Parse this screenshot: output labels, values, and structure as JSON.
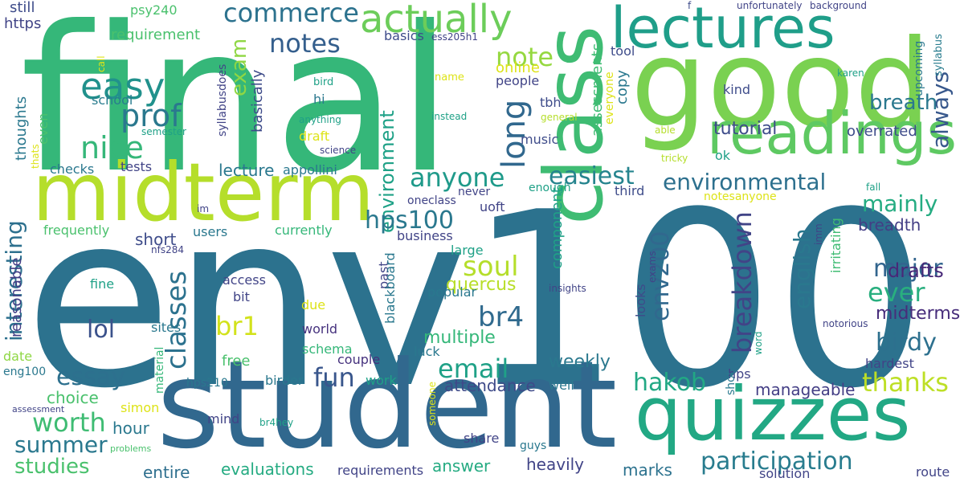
{
  "palette": {
    "dark_purple": "#46327e",
    "blue": "#365c8d",
    "steel": "#277f8e",
    "teal": "#1fa187",
    "green": "#4ac16d",
    "lime": "#a0da39",
    "yellow": "#e6e419"
  },
  "words": [
    {
      "text": "env100",
      "color": "#2c728e",
      "weight": 1.0
    },
    {
      "text": "final",
      "color": "#35b779",
      "weight": 0.84
    },
    {
      "text": "student",
      "color": "#31688e",
      "weight": 0.6
    },
    {
      "text": "good",
      "color": "#7ad151",
      "weight": 0.58
    },
    {
      "text": "midterm",
      "color": "#b5de2b",
      "weight": 0.38
    },
    {
      "text": "class",
      "color": "#3fbc73",
      "weight": 0.4
    },
    {
      "text": "quizzes",
      "color": "#22a884",
      "weight": 0.4
    },
    {
      "text": "lectures",
      "color": "#1f9e89",
      "weight": 0.3
    },
    {
      "text": "readings",
      "color": "#5ec962",
      "weight": 0.3
    },
    {
      "text": "actually",
      "color": "#6ccd5a",
      "weight": 0.2
    },
    {
      "text": "easy",
      "color": "#21918c",
      "weight": 0.18
    },
    {
      "text": "nice",
      "color": "#35b779",
      "weight": 0.16
    },
    {
      "text": "prof",
      "color": "#2a788e",
      "weight": 0.16
    },
    {
      "text": "commerce",
      "color": "#2c728e",
      "weight": 0.12
    },
    {
      "text": "notes",
      "color": "#355f8d",
      "weight": 0.12
    },
    {
      "text": "exam",
      "color": "#8fd744",
      "weight": 0.12
    },
    {
      "text": "note",
      "color": "#95d840",
      "weight": 0.12
    },
    {
      "text": "breath",
      "color": "#2a788e",
      "weight": 0.1
    },
    {
      "text": "always",
      "color": "#38588c",
      "weight": 0.1
    },
    {
      "text": "long",
      "color": "#31688e",
      "weight": 0.12
    },
    {
      "text": "anyone",
      "color": "#1f9a8a",
      "weight": 0.14
    },
    {
      "text": "easiest",
      "color": "#25848e",
      "weight": 0.14
    },
    {
      "text": "environment",
      "color": "#1fa187",
      "weight": 0.12
    },
    {
      "text": "environmental",
      "color": "#2d708e",
      "weight": 0.12
    },
    {
      "text": "hps100",
      "color": "#2a788e",
      "weight": 0.12
    },
    {
      "text": "mainly",
      "color": "#25ac82",
      "weight": 0.12
    },
    {
      "text": "major",
      "color": "#32658e",
      "weight": 0.12
    },
    {
      "text": "interesting",
      "color": "#2d708e",
      "weight": 0.12
    },
    {
      "text": "soul",
      "color": "#b5de2b",
      "weight": 0.14
    },
    {
      "text": "br4",
      "color": "#306a8e",
      "weight": 0.14
    },
    {
      "text": "br1",
      "color": "#d2e21b",
      "weight": 0.14
    },
    {
      "text": "classes",
      "color": "#2c728e",
      "weight": 0.16
    },
    {
      "text": "lol",
      "color": "#3b528b",
      "weight": 0.14
    },
    {
      "text": "email",
      "color": "#1fa187",
      "weight": 0.14
    },
    {
      "text": "essay",
      "color": "#2d708e",
      "weight": 0.14
    },
    {
      "text": "fun",
      "color": "#39568c",
      "weight": 0.14
    },
    {
      "text": "breakdown",
      "color": "#414487",
      "weight": 0.14
    },
    {
      "text": "env200",
      "color": "#31688e",
      "weight": 0.12
    },
    {
      "text": "english",
      "color": "#2a788e",
      "weight": 0.12
    },
    {
      "text": "birdy",
      "color": "#2d708e",
      "weight": 0.12
    },
    {
      "text": "ever",
      "color": "#29af7f",
      "weight": 0.14
    },
    {
      "text": "drafts",
      "color": "#482878",
      "weight": 0.1
    },
    {
      "text": "midterms",
      "color": "#472d7b",
      "weight": 0.1
    },
    {
      "text": "thanks",
      "color": "#bddf26",
      "weight": 0.12
    },
    {
      "text": "hakob",
      "color": "#22a884",
      "weight": 0.12
    },
    {
      "text": "worth",
      "color": "#3fbc73",
      "weight": 0.14
    },
    {
      "text": "summer",
      "color": "#2a788e",
      "weight": 0.12
    },
    {
      "text": "studies",
      "color": "#4ac16d",
      "weight": 0.12
    },
    {
      "text": "participation",
      "color": "#287c8e",
      "weight": 0.14
    },
    {
      "text": "weekly",
      "color": "#2a788e",
      "weight": 0.08
    },
    {
      "text": "multiple",
      "color": "#35b779",
      "weight": 0.08
    },
    {
      "text": "quercus",
      "color": "#b8de29",
      "weight": 0.08
    },
    {
      "text": "tutorial",
      "color": "#3e4c8a",
      "weight": 0.08
    },
    {
      "text": "overrated",
      "color": "#3e4c8a",
      "weight": 0.06
    },
    {
      "text": "breadth",
      "color": "#433e85",
      "weight": 0.07
    },
    {
      "text": "manageable",
      "color": "#433e85",
      "weight": 0.07
    },
    {
      "text": "attendance",
      "color": "#3e4a89",
      "weight": 0.07
    },
    {
      "text": "evaluations",
      "color": "#25ab82",
      "weight": 0.07
    },
    {
      "text": "heavily",
      "color": "#414487",
      "weight": 0.07
    },
    {
      "text": "marks",
      "color": "#2c728e",
      "weight": 0.07
    },
    {
      "text": "answer",
      "color": "#25ab82",
      "weight": 0.07
    },
    {
      "text": "entire",
      "color": "#2e6f8e",
      "weight": 0.06
    },
    {
      "text": "hour",
      "color": "#2a788e",
      "weight": 0.06
    },
    {
      "text": "choice",
      "color": "#4ac16d",
      "weight": 0.06
    },
    {
      "text": "lecture",
      "color": "#2a788e",
      "weight": 0.06
    },
    {
      "text": "short",
      "color": "#3e4c8a",
      "weight": 0.06
    },
    {
      "text": "requirement",
      "color": "#4ac16d",
      "weight": 0.06
    },
    {
      "text": "thoughts",
      "color": "#2a788e",
      "weight": 0.05
    },
    {
      "text": "reasonable",
      "color": "#433e85",
      "weight": 0.05
    },
    {
      "text": "basically",
      "color": "#3e4c8a",
      "weight": 0.05
    },
    {
      "text": "copy",
      "color": "#2a788e",
      "weight": 0.05
    },
    {
      "text": "online",
      "color": "#dde318",
      "weight": 0.05
    },
    {
      "text": "assessments",
      "color": "#3fbc73",
      "weight": 0.05
    },
    {
      "text": "component",
      "color": "#1fa187",
      "weight": 0.05
    },
    {
      "text": "still",
      "color": "#3e4c8a",
      "weight": 0.05
    },
    {
      "text": "https",
      "color": "#414487",
      "weight": 0.05
    },
    {
      "text": "psy240",
      "color": "#4ac16d",
      "weight": 0.04
    },
    {
      "text": "unfortunately",
      "color": "#414487",
      "weight": 0.03
    },
    {
      "text": "background",
      "color": "#414487",
      "weight": 0.03
    },
    {
      "text": "f",
      "color": "#3e4c8a",
      "weight": 0.03
    },
    {
      "text": "syllabus",
      "color": "#287c8e",
      "weight": 0.03
    },
    {
      "text": "karen",
      "color": "#1fa187",
      "weight": 0.03
    },
    {
      "text": "upcoming",
      "color": "#2a788e",
      "weight": 0.03
    },
    {
      "text": "tool",
      "color": "#3e4c8a",
      "weight": 0.04
    },
    {
      "text": "kind",
      "color": "#3e4c8a",
      "weight": 0.04
    },
    {
      "text": "basics",
      "color": "#3e4c8a",
      "weight": 0.04
    },
    {
      "text": "ess205h1",
      "color": "#414487",
      "weight": 0.02
    },
    {
      "text": "call",
      "color": "#dde318",
      "weight": 0.02
    },
    {
      "text": "bird",
      "color": "#1fa187",
      "weight": 0.03
    },
    {
      "text": "hi",
      "color": "#2a788e",
      "weight": 0.04
    },
    {
      "text": "school",
      "color": "#287c8e",
      "weight": 0.04
    },
    {
      "text": "syllabusdoes",
      "color": "#414487",
      "weight": 0.03
    },
    {
      "text": "anything",
      "color": "#1fa187",
      "weight": 0.03
    },
    {
      "text": "name",
      "color": "#dde318",
      "weight": 0.03
    },
    {
      "text": "people",
      "color": "#414487",
      "weight": 0.04
    },
    {
      "text": "instead",
      "color": "#1fa187",
      "weight": 0.03
    },
    {
      "text": "general",
      "color": "#b5de2b",
      "weight": 0.02
    },
    {
      "text": "everyone",
      "color": "#dde318",
      "weight": 0.03
    },
    {
      "text": "tbh",
      "color": "#3e4c8a",
      "weight": 0.04
    },
    {
      "text": "semester",
      "color": "#1fa187",
      "weight": 0.02
    },
    {
      "text": "science",
      "color": "#414487",
      "weight": 0.02
    },
    {
      "text": "music",
      "color": "#3e4c8a",
      "weight": 0.04
    },
    {
      "text": "able",
      "color": "#b5de2b",
      "weight": 0.02
    },
    {
      "text": "ok",
      "color": "#1fa187",
      "weight": 0.04
    },
    {
      "text": "tricky",
      "color": "#b5de2b",
      "weight": 0.02
    },
    {
      "text": "thats",
      "color": "#dde318",
      "weight": 0.02
    },
    {
      "text": "even",
      "color": "#4ac16d",
      "weight": 0.04
    },
    {
      "text": "draft",
      "color": "#dde318",
      "weight": 0.05
    },
    {
      "text": "checks",
      "color": "#2a788e",
      "weight": 0.04
    },
    {
      "text": "tests",
      "color": "#414487",
      "weight": 0.04
    },
    {
      "text": "appollini",
      "color": "#2a788e",
      "weight": 0.04
    },
    {
      "text": "enough",
      "color": "#1fa187",
      "weight": 0.03
    },
    {
      "text": "oneclass",
      "color": "#414487",
      "weight": 0.03
    },
    {
      "text": "never",
      "color": "#414487",
      "weight": 0.03
    },
    {
      "text": "third",
      "color": "#3e4c8a",
      "weight": 0.04
    },
    {
      "text": "notesanyone",
      "color": "#dde318",
      "weight": 0.03
    },
    {
      "text": "fall",
      "color": "#1fa187",
      "weight": 0.02
    },
    {
      "text": "im",
      "color": "#414487",
      "weight": 0.02
    },
    {
      "text": "uoft",
      "color": "#414487",
      "weight": 0.04
    },
    {
      "text": "frequently",
      "color": "#4ac16d",
      "weight": 0.04
    },
    {
      "text": "users",
      "color": "#2a788e",
      "weight": 0.04
    },
    {
      "text": "currently",
      "color": "#35b779",
      "weight": 0.04
    },
    {
      "text": "business",
      "color": "#414487",
      "weight": 0.04
    },
    {
      "text": "nfs284",
      "color": "#414487",
      "weight": 0.02
    },
    {
      "text": "large",
      "color": "#1fa187",
      "weight": 0.04
    },
    {
      "text": "past",
      "color": "#414487",
      "weight": 0.04
    },
    {
      "text": "access",
      "color": "#414487",
      "weight": 0.04
    },
    {
      "text": "insights",
      "color": "#414487",
      "weight": 0.02
    },
    {
      "text": "popular",
      "color": "#2a788e",
      "weight": 0.04
    },
    {
      "text": "irritating",
      "color": "#3fbc73",
      "weight": 0.04
    },
    {
      "text": "imm",
      "color": "#414487",
      "weight": 0.02
    },
    {
      "text": "looks",
      "color": "#3e4c8a",
      "weight": 0.04
    },
    {
      "text": "exams",
      "color": "#414487",
      "weight": 0.02
    },
    {
      "text": "fine",
      "color": "#1fa187",
      "weight": 0.04
    },
    {
      "text": "bit",
      "color": "#414487",
      "weight": 0.04
    },
    {
      "text": "due",
      "color": "#dde318",
      "weight": 0.04
    },
    {
      "text": "blackboard",
      "color": "#2a788e",
      "weight": 0.04
    },
    {
      "text": "world",
      "color": "#46327e",
      "weight": 0.04
    },
    {
      "text": "notorious",
      "color": "#414487",
      "weight": 0.02
    },
    {
      "text": "word",
      "color": "#1fa187",
      "weight": 0.02
    },
    {
      "text": "hardest",
      "color": "#414487",
      "weight": 0.04
    },
    {
      "text": "date",
      "color": "#8fd744",
      "weight": 0.04
    },
    {
      "text": "sites",
      "color": "#2a788e",
      "weight": 0.04
    },
    {
      "text": "schema",
      "color": "#35b779",
      "weight": 0.04
    },
    {
      "text": "luck",
      "color": "#2a788e",
      "weight": 0.04
    },
    {
      "text": "eng100",
      "color": "#2a788e",
      "weight": 0.04
    },
    {
      "text": "free",
      "color": "#4ac16d",
      "weight": 0.04
    },
    {
      "text": "material",
      "color": "#35b779",
      "weight": 0.03
    },
    {
      "text": "couple",
      "color": "#46327e",
      "weight": 0.04
    },
    {
      "text": "hps210",
      "color": "#2a788e",
      "weight": 0.04
    },
    {
      "text": "birder",
      "color": "#2a788e",
      "weight": 0.04
    },
    {
      "text": "work",
      "color": "#1fa187",
      "weight": 0.04
    },
    {
      "text": "well",
      "color": "#2a788e",
      "weight": 0.04
    },
    {
      "text": "hps",
      "color": "#414487",
      "weight": 0.04
    },
    {
      "text": "shot",
      "color": "#2a788e",
      "weight": 0.03
    },
    {
      "text": "simon",
      "color": "#dde318",
      "weight": 0.04
    },
    {
      "text": "someone",
      "color": "#dde318",
      "weight": 0.02
    },
    {
      "text": "assessment",
      "color": "#414487",
      "weight": 0.02
    },
    {
      "text": "mind",
      "color": "#414487",
      "weight": 0.04
    },
    {
      "text": "br4hey",
      "color": "#1fa187",
      "weight": 0.02
    },
    {
      "text": "problems",
      "color": "#4ac16d",
      "weight": 0.02
    },
    {
      "text": "share",
      "color": "#414487",
      "weight": 0.04
    },
    {
      "text": "guys",
      "color": "#2a788e",
      "weight": 0.03
    },
    {
      "text": "requirements",
      "color": "#414487",
      "weight": 0.04
    },
    {
      "text": "solution",
      "color": "#414487",
      "weight": 0.04
    },
    {
      "text": "route",
      "color": "#414487",
      "weight": 0.04
    }
  ]
}
